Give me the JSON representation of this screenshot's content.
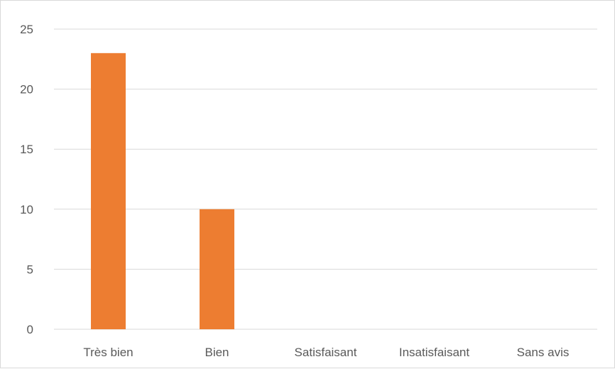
{
  "chart_data": {
    "type": "bar",
    "title": "",
    "xlabel": "",
    "ylabel": "",
    "categories": [
      "Très bien",
      "Bien",
      "Satisfaisant",
      "Insatisfaisant",
      "Sans avis"
    ],
    "values": [
      23,
      10,
      0,
      0,
      0
    ],
    "ylim": [
      0,
      25
    ],
    "yticks": [
      0,
      5,
      10,
      15,
      20,
      25
    ],
    "ytick_labels": [
      "0",
      "5",
      "10",
      "15",
      "20",
      "25"
    ],
    "grid": true,
    "legend": "none",
    "bar_color": "#ED7D31",
    "grid_color": "#D9D9D9",
    "label_color": "#595959"
  }
}
